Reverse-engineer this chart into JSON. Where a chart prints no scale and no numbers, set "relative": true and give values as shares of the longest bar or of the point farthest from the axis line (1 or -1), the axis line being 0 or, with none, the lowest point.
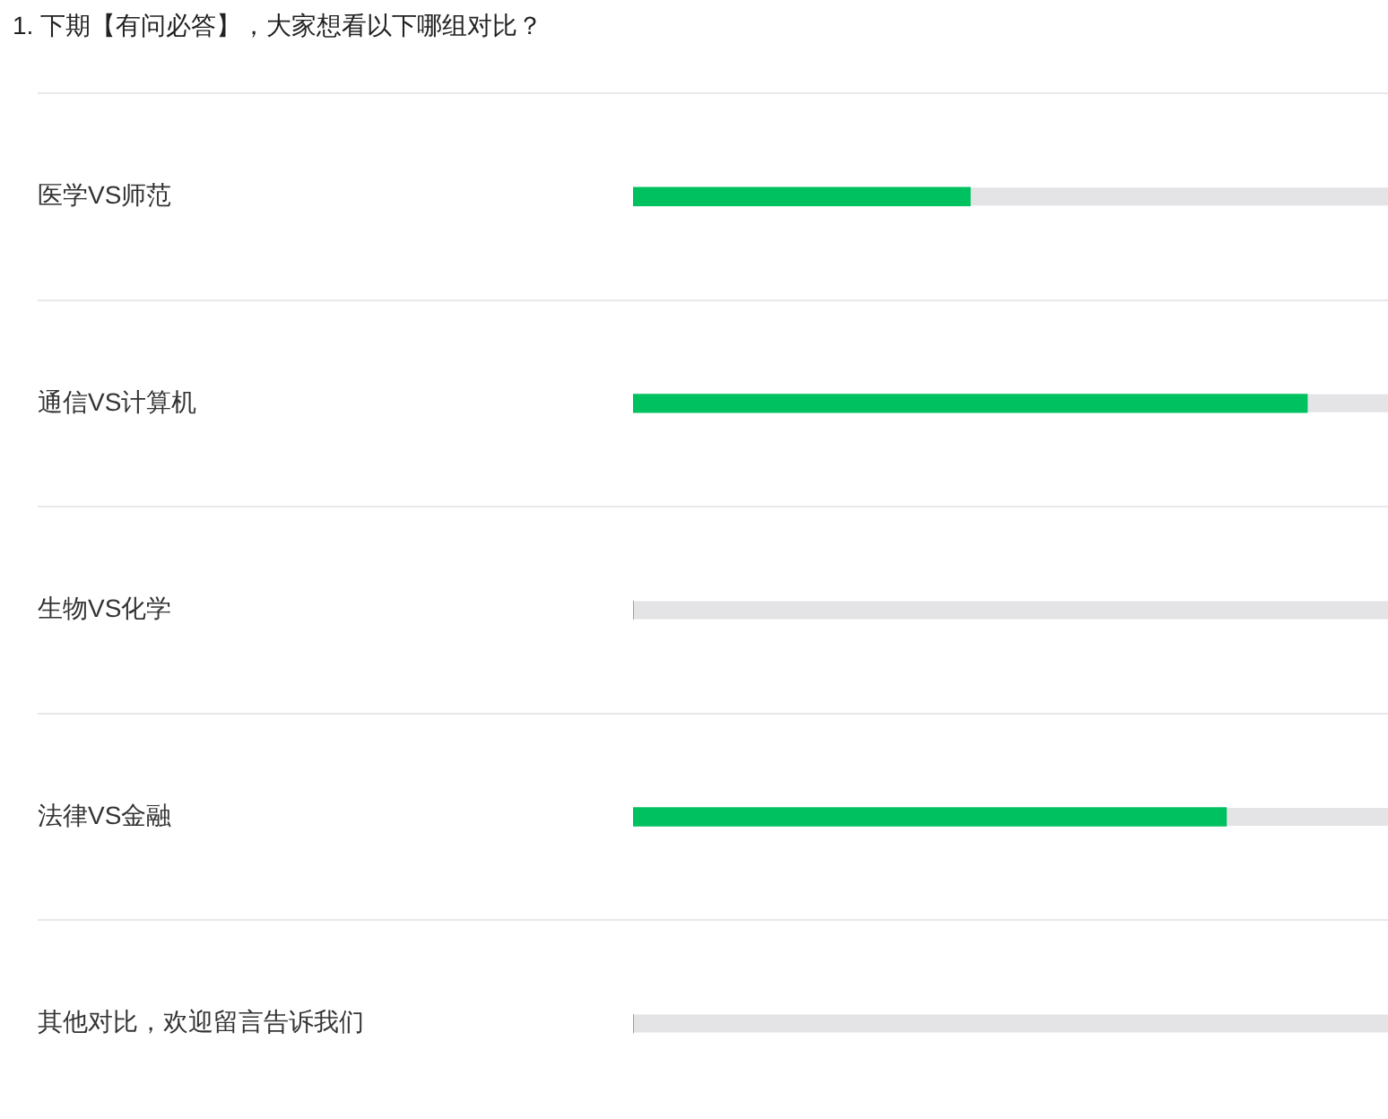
{
  "chart_data": {
    "type": "bar",
    "orientation": "horizontal",
    "relative": true,
    "title": "1. 下期【有问必答】，大家想看以下哪组对比？",
    "categories": [
      "医学VS师范",
      "通信VS计算机",
      "生物VS化学",
      "法律VS金融",
      "其他对比，欢迎留言告诉我们"
    ],
    "values": [
      0.5,
      1,
      0,
      0.88,
      0
    ],
    "color": "#00c160",
    "grid": "y"
  }
}
